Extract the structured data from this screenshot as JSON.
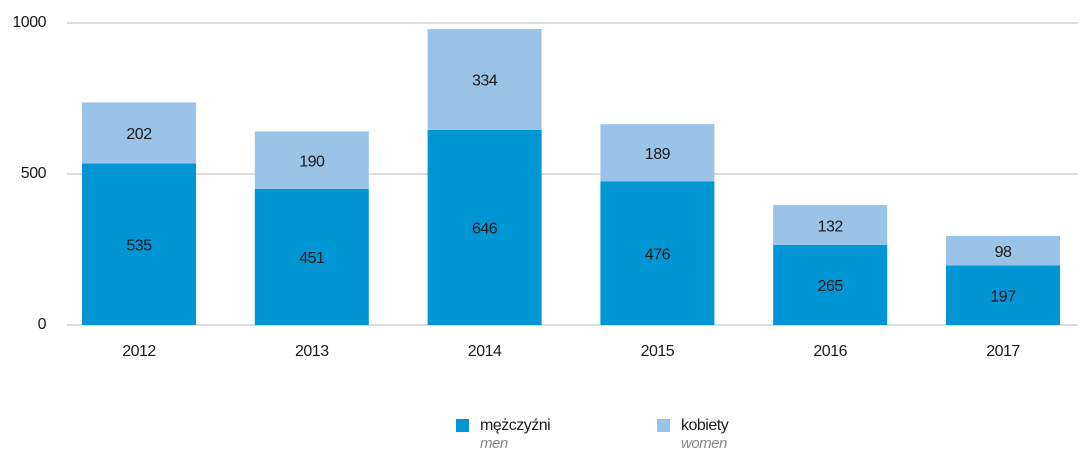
{
  "chart_data": {
    "type": "bar",
    "stacked": true,
    "categories": [
      "2012",
      "2013",
      "2014",
      "2015",
      "2016",
      "2017"
    ],
    "series": [
      {
        "name": "mężczyźni",
        "subtitle": "men",
        "color": "#0096d6",
        "values": [
          535,
          451,
          646,
          476,
          265,
          197
        ]
      },
      {
        "name": "kobiety",
        "subtitle": "women",
        "color": "#99c4e8",
        "values": [
          202,
          190,
          334,
          189,
          132,
          98
        ]
      }
    ],
    "ylim": [
      0,
      1000
    ],
    "yticks": [
      0,
      500,
      1000
    ],
    "grid": true
  }
}
